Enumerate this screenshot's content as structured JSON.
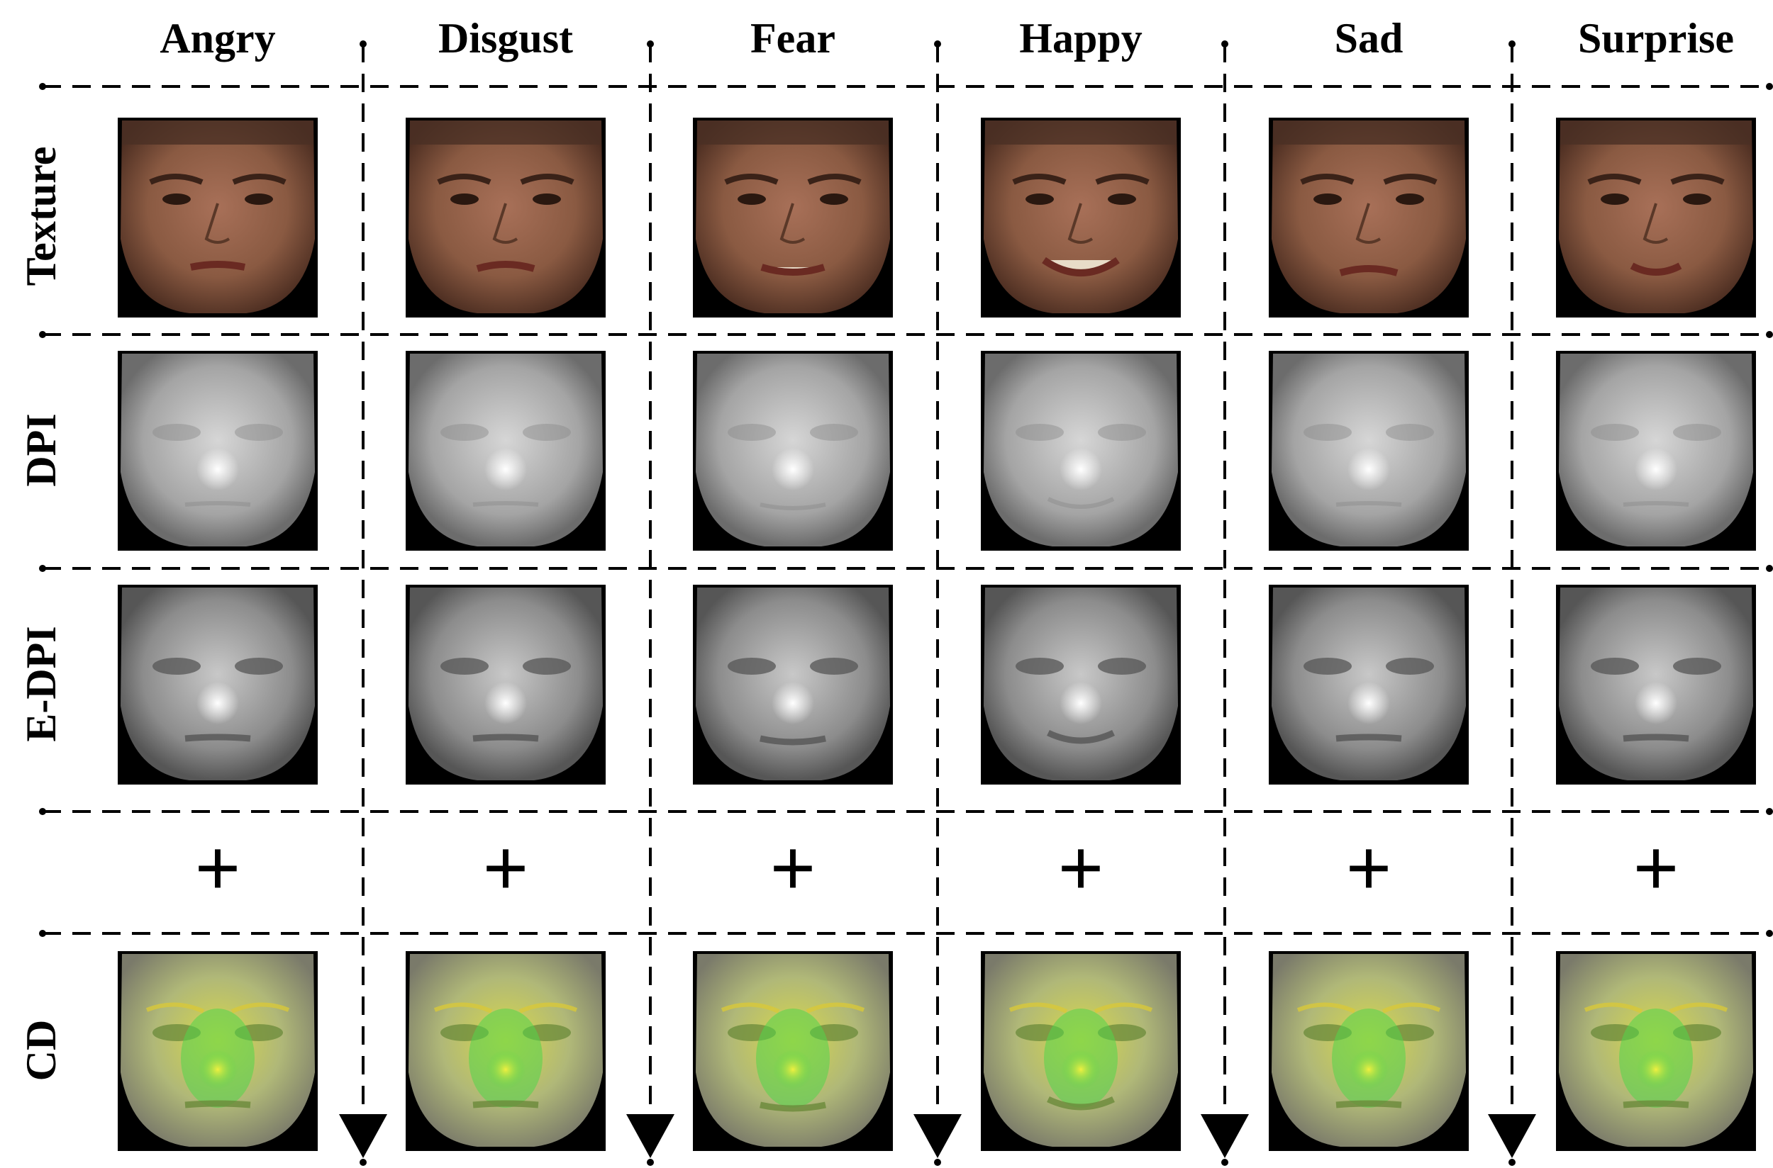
{
  "figure": {
    "columns": [
      "Angry",
      "Disgust",
      "Fear",
      "Happy",
      "Sad",
      "Surprise"
    ],
    "rows": [
      {
        "label": "Texture",
        "kind": "texture"
      },
      {
        "label": "DPI",
        "kind": "depth"
      },
      {
        "label": "E-DPI",
        "kind": "enhanced-depth"
      },
      {
        "label": "CD",
        "kind": "color-depth"
      }
    ],
    "operator": "+",
    "colors": {
      "background": "#ffffff",
      "lines": "#000000",
      "skin": "#8a5a42",
      "depth_gray": "#b4b4b4",
      "cd_yellow": "#d8d84a",
      "cd_green": "#52d64a"
    }
  }
}
